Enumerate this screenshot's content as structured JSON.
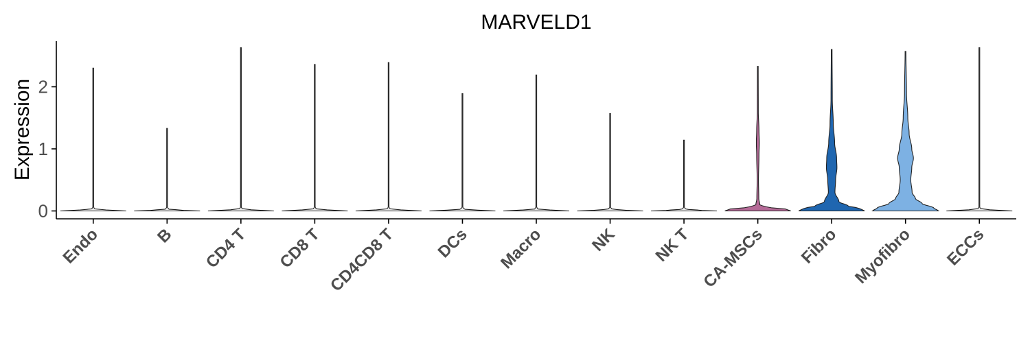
{
  "chart_data": {
    "type": "violin",
    "title": "MARVELD1",
    "xlabel": "",
    "ylabel": "Expression",
    "ylim": [
      -0.15,
      2.75
    ],
    "yticks": [
      0,
      1,
      2
    ],
    "grid": false,
    "legend": "none",
    "categories": [
      "Endo",
      "B",
      "CD4 T",
      "CD8 T",
      "CD4CD8 T",
      "DCs",
      "Macro",
      "NK",
      "NK T",
      "CA-MSCs",
      "Fibro",
      "Myofibro",
      "ECCs"
    ],
    "max_values": [
      2.3,
      1.33,
      2.63,
      2.36,
      2.39,
      1.89,
      2.19,
      1.57,
      1.14,
      2.33,
      2.6,
      2.57,
      2.63
    ],
    "fill_colors": [
      "#F0F0F0",
      "#F0F0F0",
      "#F0F0F0",
      "#F0F0F0",
      "#F0F0F0",
      "#F0F0F0",
      "#F0F0F0",
      "#F0F0F0",
      "#F0F0F0",
      "#B56A97",
      "#1F66B0",
      "#7DB1E3",
      "#F0F0F0"
    ],
    "density_profiles": [
      [
        [
          0,
          1
        ],
        [
          0.01,
          0.5
        ],
        [
          0.03,
          0.05
        ],
        [
          0.06,
          0.012
        ],
        [
          1,
          0.012
        ]
      ],
      [
        [
          0,
          1
        ],
        [
          0.01,
          0.5
        ],
        [
          0.03,
          0.05
        ],
        [
          0.06,
          0.012
        ],
        [
          1,
          0.012
        ]
      ],
      [
        [
          0,
          1
        ],
        [
          0.01,
          0.5
        ],
        [
          0.03,
          0.05
        ],
        [
          0.06,
          0.012
        ],
        [
          1,
          0.012
        ]
      ],
      [
        [
          0,
          1
        ],
        [
          0.01,
          0.5
        ],
        [
          0.03,
          0.05
        ],
        [
          0.06,
          0.012
        ],
        [
          1,
          0.012
        ]
      ],
      [
        [
          0,
          1
        ],
        [
          0.01,
          0.5
        ],
        [
          0.03,
          0.05
        ],
        [
          0.06,
          0.012
        ],
        [
          1,
          0.012
        ]
      ],
      [
        [
          0,
          1
        ],
        [
          0.01,
          0.5
        ],
        [
          0.03,
          0.05
        ],
        [
          0.06,
          0.012
        ],
        [
          1,
          0.012
        ]
      ],
      [
        [
          0,
          1
        ],
        [
          0.01,
          0.5
        ],
        [
          0.03,
          0.05
        ],
        [
          0.06,
          0.012
        ],
        [
          1,
          0.012
        ]
      ],
      [
        [
          0,
          1
        ],
        [
          0.01,
          0.5
        ],
        [
          0.03,
          0.05
        ],
        [
          0.06,
          0.012
        ],
        [
          1,
          0.012
        ]
      ],
      [
        [
          0,
          1
        ],
        [
          0.01,
          0.5
        ],
        [
          0.03,
          0.05
        ],
        [
          0.06,
          0.012
        ],
        [
          1,
          0.012
        ]
      ],
      [
        [
          0,
          1
        ],
        [
          0.03,
          0.85
        ],
        [
          0.06,
          0.28
        ],
        [
          0.1,
          0.06
        ],
        [
          0.2,
          0.03
        ],
        [
          0.5,
          0.02
        ],
        [
          0.9,
          0.035
        ],
        [
          1.1,
          0.045
        ],
        [
          1.3,
          0.035
        ],
        [
          1.6,
          0.015
        ],
        [
          2.33,
          0.012
        ]
      ],
      [
        [
          0,
          1
        ],
        [
          0.04,
          0.85
        ],
        [
          0.08,
          0.5
        ],
        [
          0.15,
          0.22
        ],
        [
          0.3,
          0.1
        ],
        [
          0.5,
          0.12
        ],
        [
          0.7,
          0.16
        ],
        [
          0.85,
          0.15
        ],
        [
          1.1,
          0.09
        ],
        [
          1.4,
          0.05
        ],
        [
          1.8,
          0.02
        ],
        [
          2.6,
          0.012
        ]
      ],
      [
        [
          0,
          1
        ],
        [
          0.05,
          0.85
        ],
        [
          0.12,
          0.5
        ],
        [
          0.2,
          0.3
        ],
        [
          0.3,
          0.2
        ],
        [
          0.5,
          0.16
        ],
        [
          0.7,
          0.19
        ],
        [
          0.85,
          0.24
        ],
        [
          1.0,
          0.19
        ],
        [
          1.25,
          0.11
        ],
        [
          1.5,
          0.07
        ],
        [
          1.9,
          0.03
        ],
        [
          2.57,
          0.012
        ]
      ],
      [
        [
          0,
          1
        ],
        [
          0.01,
          0.5
        ],
        [
          0.03,
          0.05
        ],
        [
          0.06,
          0.012
        ],
        [
          1,
          0.012
        ]
      ]
    ]
  }
}
